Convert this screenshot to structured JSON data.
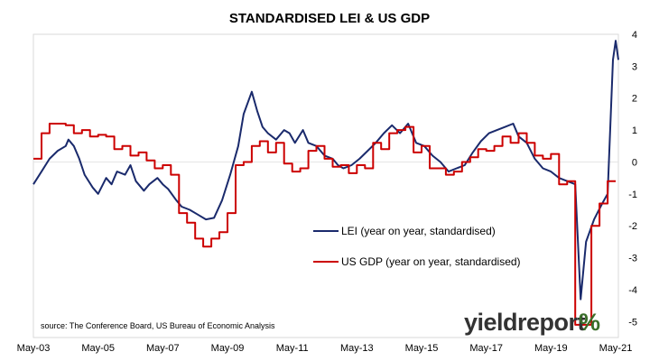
{
  "chart_data": {
    "type": "line",
    "title": "STANDARDISED LEI & US GDP",
    "source": "source: The Conference Board, US Bureau of Economic Analysis",
    "logo": {
      "word": "yieldreport",
      "symbol": "%"
    },
    "x_tick_labels": [
      "May-03",
      "May-05",
      "May-07",
      "May-09",
      "May-11",
      "May-13",
      "May-15",
      "May-17",
      "May-19",
      "May-21"
    ],
    "x_range": [
      "2003-05",
      "2021-06"
    ],
    "y_ticks": [
      4,
      3,
      2,
      1,
      0,
      -1,
      -2,
      -3,
      -4,
      -5
    ],
    "y_axis_side": "right",
    "ylim": [
      -5.5,
      4
    ],
    "grid": false,
    "legend_position": "center-right",
    "series": [
      {
        "name": "LEI (year on year, standardised)",
        "color": "#1a2a6c",
        "points": [
          [
            "2003-05",
            -0.7
          ],
          [
            "2003-08",
            -0.3
          ],
          [
            "2003-11",
            0.1
          ],
          [
            "2004-02",
            0.35
          ],
          [
            "2004-05",
            0.5
          ],
          [
            "2004-06",
            0.7
          ],
          [
            "2004-08",
            0.5
          ],
          [
            "2004-10",
            0.1
          ],
          [
            "2004-12",
            -0.4
          ],
          [
            "2005-03",
            -0.8
          ],
          [
            "2005-05",
            -1.0
          ],
          [
            "2005-08",
            -0.5
          ],
          [
            "2005-10",
            -0.7
          ],
          [
            "2005-12",
            -0.3
          ],
          [
            "2006-03",
            -0.4
          ],
          [
            "2006-05",
            -0.1
          ],
          [
            "2006-07",
            -0.6
          ],
          [
            "2006-10",
            -0.9
          ],
          [
            "2006-12",
            -0.7
          ],
          [
            "2007-03",
            -0.5
          ],
          [
            "2007-05",
            -0.7
          ],
          [
            "2007-07",
            -0.85
          ],
          [
            "2007-10",
            -1.2
          ],
          [
            "2007-12",
            -1.4
          ],
          [
            "2008-03",
            -1.5
          ],
          [
            "2008-06",
            -1.65
          ],
          [
            "2008-09",
            -1.8
          ],
          [
            "2008-12",
            -1.75
          ],
          [
            "2009-03",
            -1.2
          ],
          [
            "2009-06",
            -0.4
          ],
          [
            "2009-09",
            0.5
          ],
          [
            "2009-11",
            1.5
          ],
          [
            "2010-02",
            2.2
          ],
          [
            "2010-04",
            1.6
          ],
          [
            "2010-06",
            1.1
          ],
          [
            "2010-08",
            0.9
          ],
          [
            "2010-11",
            0.7
          ],
          [
            "2011-02",
            1.0
          ],
          [
            "2011-04",
            0.9
          ],
          [
            "2011-06",
            0.6
          ],
          [
            "2011-09",
            1.0
          ],
          [
            "2011-11",
            0.6
          ],
          [
            "2012-02",
            0.5
          ],
          [
            "2012-05",
            0.2
          ],
          [
            "2012-08",
            0.1
          ],
          [
            "2012-10",
            -0.1
          ],
          [
            "2012-12",
            -0.2
          ],
          [
            "2013-03",
            -0.1
          ],
          [
            "2013-06",
            0.1
          ],
          [
            "2013-09",
            0.35
          ],
          [
            "2013-12",
            0.6
          ],
          [
            "2014-03",
            0.9
          ],
          [
            "2014-06",
            1.15
          ],
          [
            "2014-09",
            0.9
          ],
          [
            "2014-12",
            1.2
          ],
          [
            "2015-03",
            0.6
          ],
          [
            "2015-06",
            0.5
          ],
          [
            "2015-09",
            0.2
          ],
          [
            "2015-12",
            0.0
          ],
          [
            "2016-03",
            -0.3
          ],
          [
            "2016-06",
            -0.2
          ],
          [
            "2016-09",
            -0.1
          ],
          [
            "2016-12",
            0.3
          ],
          [
            "2017-03",
            0.65
          ],
          [
            "2017-06",
            0.9
          ],
          [
            "2017-09",
            1.0
          ],
          [
            "2017-12",
            1.1
          ],
          [
            "2018-03",
            1.2
          ],
          [
            "2018-05",
            0.8
          ],
          [
            "2018-08",
            0.6
          ],
          [
            "2018-11",
            0.1
          ],
          [
            "2019-02",
            -0.2
          ],
          [
            "2019-05",
            -0.3
          ],
          [
            "2019-08",
            -0.5
          ],
          [
            "2019-11",
            -0.6
          ],
          [
            "2020-02",
            -0.7
          ],
          [
            "2020-04",
            -4.3
          ],
          [
            "2020-06",
            -2.5
          ],
          [
            "2020-09",
            -1.8
          ],
          [
            "2020-12",
            -1.3
          ],
          [
            "2021-02",
            -1.0
          ],
          [
            "2021-04",
            3.2
          ],
          [
            "2021-05",
            3.8
          ],
          [
            "2021-06",
            3.2
          ]
        ]
      },
      {
        "name": "US GDP (year on year, standardised)",
        "color": "#cc0000",
        "step": true,
        "points": [
          [
            "2003-05",
            0.1
          ],
          [
            "2003-08",
            0.9
          ],
          [
            "2003-11",
            1.2
          ],
          [
            "2004-02",
            1.2
          ],
          [
            "2004-05",
            1.15
          ],
          [
            "2004-08",
            0.9
          ],
          [
            "2004-11",
            1.0
          ],
          [
            "2005-02",
            0.8
          ],
          [
            "2005-05",
            0.85
          ],
          [
            "2005-08",
            0.8
          ],
          [
            "2005-11",
            0.4
          ],
          [
            "2006-02",
            0.5
          ],
          [
            "2006-05",
            0.2
          ],
          [
            "2006-08",
            0.3
          ],
          [
            "2006-11",
            0.05
          ],
          [
            "2007-02",
            -0.2
          ],
          [
            "2007-05",
            -0.1
          ],
          [
            "2007-08",
            -0.4
          ],
          [
            "2007-11",
            -1.6
          ],
          [
            "2008-02",
            -1.9
          ],
          [
            "2008-05",
            -2.4
          ],
          [
            "2008-08",
            -2.65
          ],
          [
            "2008-11",
            -2.4
          ],
          [
            "2009-02",
            -2.2
          ],
          [
            "2009-05",
            -1.6
          ],
          [
            "2009-08",
            -0.1
          ],
          [
            "2009-11",
            0.0
          ],
          [
            "2010-02",
            0.5
          ],
          [
            "2010-05",
            0.65
          ],
          [
            "2010-08",
            0.3
          ],
          [
            "2010-11",
            0.6
          ],
          [
            "2011-02",
            -0.05
          ],
          [
            "2011-05",
            -0.3
          ],
          [
            "2011-08",
            -0.2
          ],
          [
            "2011-11",
            0.35
          ],
          [
            "2012-02",
            0.5
          ],
          [
            "2012-05",
            0.1
          ],
          [
            "2012-08",
            -0.15
          ],
          [
            "2012-11",
            -0.1
          ],
          [
            "2013-02",
            -0.35
          ],
          [
            "2013-05",
            -0.1
          ],
          [
            "2013-08",
            -0.2
          ],
          [
            "2013-11",
            0.6
          ],
          [
            "2014-02",
            0.4
          ],
          [
            "2014-05",
            0.9
          ],
          [
            "2014-08",
            1.0
          ],
          [
            "2014-11",
            1.1
          ],
          [
            "2015-02",
            0.3
          ],
          [
            "2015-05",
            0.5
          ],
          [
            "2015-08",
            -0.2
          ],
          [
            "2015-11",
            -0.2
          ],
          [
            "2016-02",
            -0.4
          ],
          [
            "2016-05",
            -0.3
          ],
          [
            "2016-08",
            0.0
          ],
          [
            "2016-11",
            0.15
          ],
          [
            "2017-02",
            0.4
          ],
          [
            "2017-05",
            0.35
          ],
          [
            "2017-08",
            0.5
          ],
          [
            "2017-11",
            0.8
          ],
          [
            "2018-02",
            0.6
          ],
          [
            "2018-05",
            0.9
          ],
          [
            "2018-08",
            0.6
          ],
          [
            "2018-11",
            0.2
          ],
          [
            "2019-02",
            0.1
          ],
          [
            "2019-05",
            0.25
          ],
          [
            "2019-08",
            -0.7
          ],
          [
            "2019-11",
            -0.6
          ],
          [
            "2020-02",
            -5.1
          ],
          [
            "2020-05",
            -5.1
          ],
          [
            "2020-08",
            -2.0
          ],
          [
            "2020-11",
            -1.3
          ],
          [
            "2021-02",
            -0.6
          ],
          [
            "2021-05",
            -0.6
          ]
        ]
      }
    ]
  }
}
